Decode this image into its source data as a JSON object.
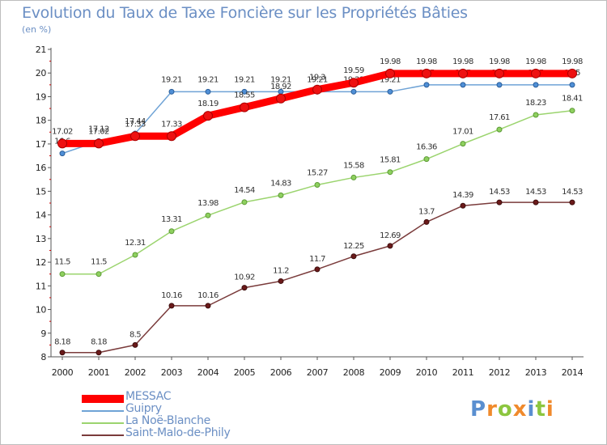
{
  "chart_data": {
    "type": "line",
    "title": "Evolution du Taux de Taxe Foncière sur les Propriétés Bâties",
    "ylabel": "(en %)",
    "xlabel": "",
    "categories": [
      "2000",
      "2001",
      "2002",
      "2003",
      "2004",
      "2005",
      "2006",
      "2007",
      "2008",
      "2009",
      "2010",
      "2011",
      "2012",
      "2013",
      "2014"
    ],
    "ylim": [
      8,
      21
    ],
    "yticks": [
      "8",
      "9",
      "10",
      "11",
      "12",
      "13",
      "14",
      "15",
      "16",
      "17",
      "18",
      "19",
      "20",
      "21"
    ],
    "grid": false,
    "legend_position": "bottom-left",
    "series": [
      {
        "name": "MESSAC",
        "color": "#ff0000",
        "values": [
          17.02,
          17.02,
          17.33,
          17.33,
          18.19,
          18.55,
          18.92,
          19.3,
          19.59,
          19.98,
          19.98,
          19.98,
          19.98,
          19.98,
          19.98
        ],
        "labels": [
          "17.02",
          "17.02",
          "17.33",
          "17.33",
          "18.19",
          "18.55",
          "18.92",
          "19.3",
          "19.59",
          "19.98",
          "19.98",
          "19.98",
          "19.98",
          "19.98",
          "19.98"
        ]
      },
      {
        "name": "Guipry",
        "color": "#6fa3d6",
        "values": [
          16.6,
          17.12,
          17.44,
          19.21,
          19.21,
          19.21,
          19.21,
          19.21,
          19.21,
          19.21,
          19.5,
          19.5,
          19.5,
          19.5,
          19.5
        ],
        "labels": [
          "16.6",
          "17.12",
          "17.44",
          "19.21",
          "19.21",
          "19.21",
          "19.21",
          "19.21",
          "19.21",
          "19.21",
          "19.5",
          "19.5",
          "19.5",
          "19.5",
          "19.5"
        ]
      },
      {
        "name": "La Noë-Blanche",
        "color": "#9bd46e",
        "values": [
          11.5,
          11.5,
          12.31,
          13.31,
          13.98,
          14.54,
          14.83,
          15.27,
          15.58,
          15.81,
          16.36,
          17.01,
          17.61,
          18.23,
          18.41
        ],
        "labels": [
          "11.5",
          "11.5",
          "12.31",
          "13.31",
          "13.98",
          "14.54",
          "14.83",
          "15.27",
          "15.58",
          "15.81",
          "16.36",
          "17.01",
          "17.61",
          "18.23",
          "18.41"
        ]
      },
      {
        "name": "Saint-Malo-de-Phily",
        "color": "#7a3b3b",
        "values": [
          8.18,
          8.18,
          8.5,
          10.16,
          10.16,
          10.92,
          11.2,
          11.7,
          12.25,
          12.69,
          13.7,
          14.39,
          14.53,
          14.53,
          14.53
        ],
        "labels": [
          "8.18",
          "8.18",
          "8.5",
          "10.16",
          "10.16",
          "10.92",
          "11.2",
          "11.7",
          "12.25",
          "12.69",
          "13.7",
          "14.39",
          "14.53",
          "14.53",
          "14.53"
        ]
      }
    ]
  },
  "logo": {
    "letters": [
      {
        "ch": "P",
        "color": "#5a8fd0"
      },
      {
        "ch": "r",
        "color": "#f08a2c"
      },
      {
        "ch": "o",
        "color": "#8cc63f"
      },
      {
        "ch": "x",
        "color": "#f08a2c"
      },
      {
        "ch": "i",
        "color": "#5a8fd0"
      },
      {
        "ch": "t",
        "color": "#8cc63f"
      },
      {
        "ch": "i",
        "color": "#f08a2c"
      }
    ]
  }
}
